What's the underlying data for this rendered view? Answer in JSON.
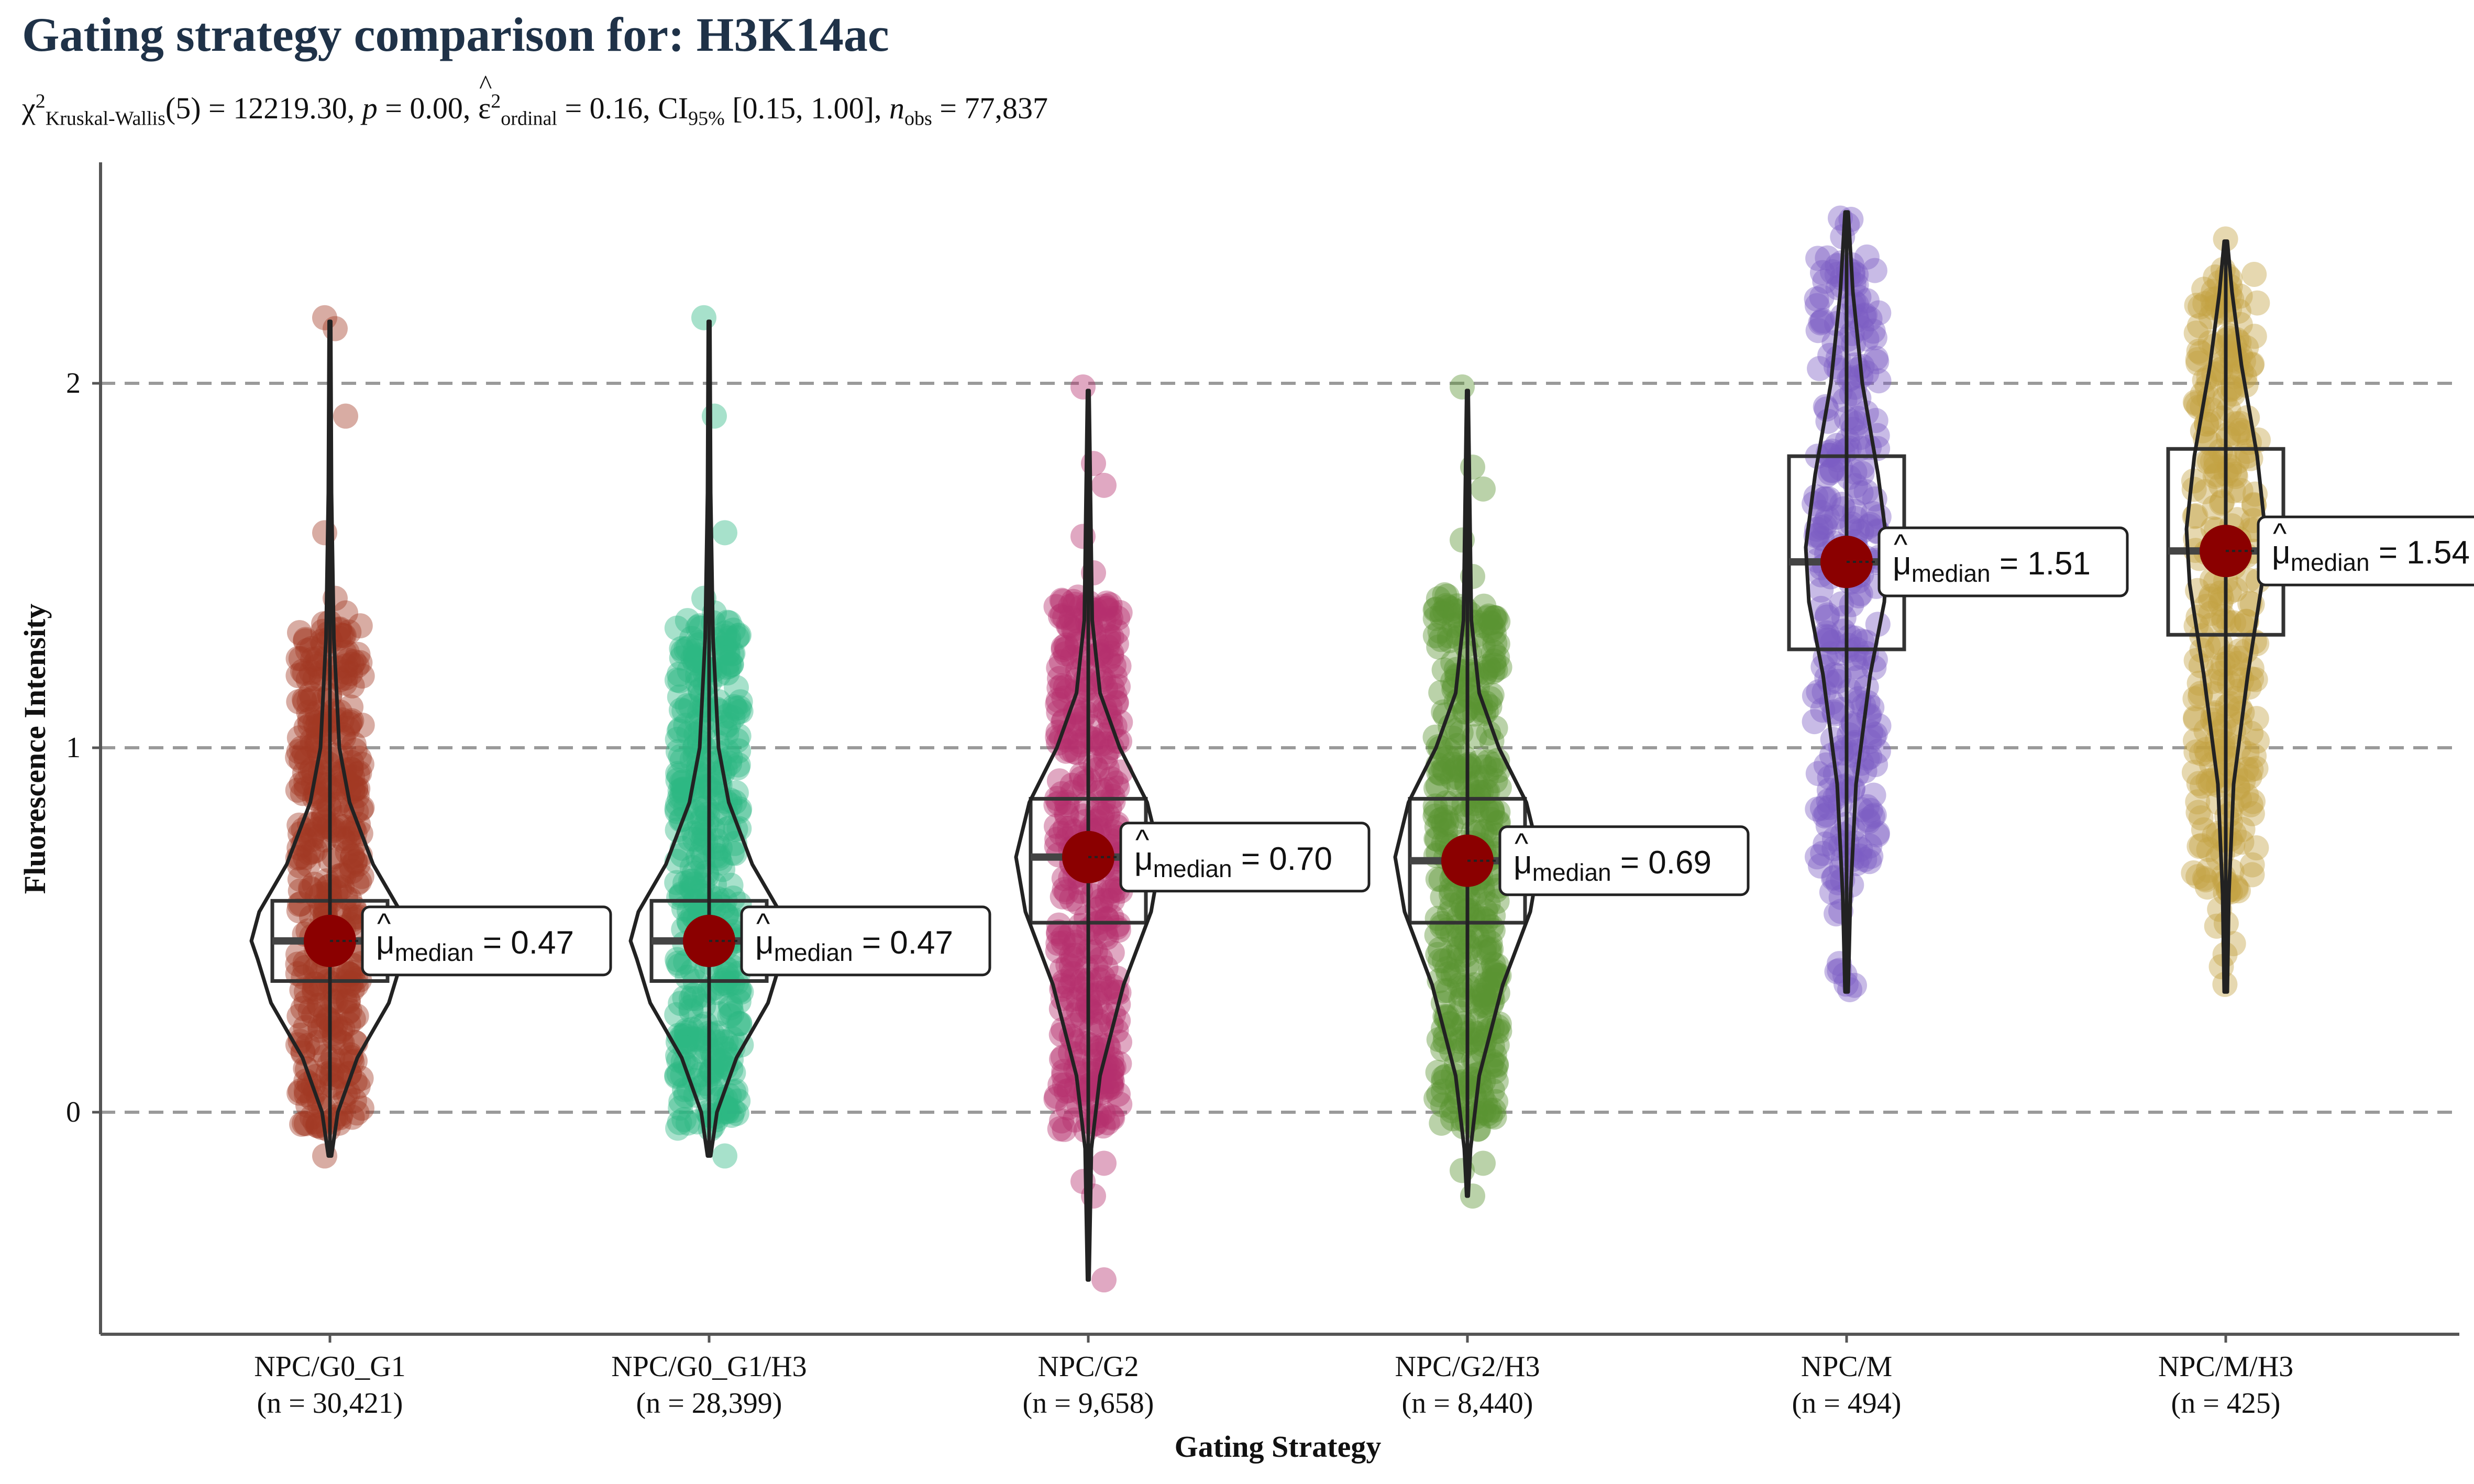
{
  "chart_data": {
    "type": "violin",
    "title": "Gating strategy comparison for: H3K14ac",
    "subtitle": {
      "chi_symbol": "χ",
      "chi_sup": "2",
      "chi_sub": "Kruskal-Wallis",
      "df_text": "(5) = 12219.30, ",
      "p_label": "p",
      "p_text": " = 0.00, ",
      "eps_symbol": "ε",
      "eps_sup": "2",
      "eps_sub": "ordinal",
      "eps_text": " = 0.16, CI",
      "ci_sub": "95%",
      "ci_text": " [0.15, 1.00], ",
      "n_label": "n",
      "n_sub": "obs",
      "n_text": " = 77,837"
    },
    "xlabel": "Gating Strategy",
    "ylabel": "Fluorescence Intensity",
    "ylim": [
      -0.6,
      2.6
    ],
    "yticks": [
      0,
      1,
      2
    ],
    "ytick_labels": [
      "0",
      "1",
      "2"
    ],
    "grid": "dashed horizontal at ticks",
    "median_label_prefix": "μ",
    "median_label_sub": "median",
    "groups": [
      {
        "name": "NPC/G0_G1",
        "n_label": "(n = 30,421)",
        "color": "#a23a24",
        "median": 0.47,
        "median_label": " = 0.47",
        "q1": 0.36,
        "q3": 0.58,
        "whisker_low": -0.12,
        "whisker_high": 2.17,
        "min": -0.13,
        "max": 2.18,
        "dense_range": [
          -0.05,
          1.35
        ],
        "outliers": [
          2.18,
          2.15,
          1.91,
          1.59,
          1.41,
          1.37,
          -0.12
        ],
        "density": [
          [
            -0.12,
            0.02
          ],
          [
            0.0,
            0.1
          ],
          [
            0.15,
            0.35
          ],
          [
            0.3,
            0.75
          ],
          [
            0.42,
            0.92
          ],
          [
            0.47,
            1.0
          ],
          [
            0.55,
            0.9
          ],
          [
            0.68,
            0.55
          ],
          [
            0.85,
            0.25
          ],
          [
            1.0,
            0.12
          ],
          [
            1.3,
            0.05
          ],
          [
            1.7,
            0.02
          ],
          [
            2.17,
            0.01
          ]
        ]
      },
      {
        "name": "NPC/G0_G1/H3",
        "n_label": "(n = 28,399)",
        "color": "#2db883",
        "median": 0.47,
        "median_label": " = 0.47",
        "q1": 0.36,
        "q3": 0.58,
        "whisker_low": -0.12,
        "whisker_high": 2.17,
        "min": -0.13,
        "max": 2.18,
        "dense_range": [
          -0.05,
          1.35
        ],
        "outliers": [
          2.18,
          1.91,
          1.59,
          1.41,
          1.37,
          -0.12
        ],
        "density": [
          [
            -0.12,
            0.02
          ],
          [
            0.0,
            0.1
          ],
          [
            0.15,
            0.35
          ],
          [
            0.3,
            0.75
          ],
          [
            0.42,
            0.92
          ],
          [
            0.47,
            1.0
          ],
          [
            0.55,
            0.9
          ],
          [
            0.68,
            0.55
          ],
          [
            0.85,
            0.25
          ],
          [
            1.0,
            0.12
          ],
          [
            1.3,
            0.05
          ],
          [
            1.7,
            0.02
          ],
          [
            2.17,
            0.01
          ]
        ]
      },
      {
        "name": "NPC/G2",
        "n_label": "(n = 9,658)",
        "color": "#b52f6e",
        "median": 0.7,
        "median_label": " = 0.70",
        "q1": 0.52,
        "q3": 0.86,
        "whisker_low": -0.46,
        "whisker_high": 1.98,
        "min": -0.46,
        "max": 1.99,
        "dense_range": [
          -0.05,
          1.42
        ],
        "outliers": [
          1.99,
          1.78,
          1.72,
          1.58,
          1.48,
          -0.14,
          -0.19,
          -0.23,
          -0.46
        ],
        "density": [
          [
            -0.46,
            0.01
          ],
          [
            -0.1,
            0.04
          ],
          [
            0.1,
            0.15
          ],
          [
            0.35,
            0.45
          ],
          [
            0.55,
            0.8
          ],
          [
            0.7,
            0.92
          ],
          [
            0.85,
            0.75
          ],
          [
            1.0,
            0.4
          ],
          [
            1.15,
            0.15
          ],
          [
            1.35,
            0.05
          ],
          [
            1.98,
            0.01
          ]
        ]
      },
      {
        "name": "NPC/G2/H3",
        "n_label": "(n = 8,440)",
        "color": "#5a9433",
        "median": 0.69,
        "median_label": " = 0.69",
        "q1": 0.52,
        "q3": 0.86,
        "whisker_low": -0.23,
        "whisker_high": 1.98,
        "min": -0.23,
        "max": 1.99,
        "dense_range": [
          -0.05,
          1.42
        ],
        "outliers": [
          1.99,
          1.77,
          1.71,
          1.57,
          1.47,
          -0.14,
          -0.16,
          -0.23
        ],
        "density": [
          [
            -0.23,
            0.01
          ],
          [
            -0.1,
            0.04
          ],
          [
            0.1,
            0.15
          ],
          [
            0.35,
            0.45
          ],
          [
            0.55,
            0.8
          ],
          [
            0.7,
            0.92
          ],
          [
            0.85,
            0.75
          ],
          [
            1.0,
            0.4
          ],
          [
            1.15,
            0.15
          ],
          [
            1.35,
            0.05
          ],
          [
            1.98,
            0.01
          ]
        ]
      },
      {
        "name": "NPC/M",
        "n_label": "(n = 494)",
        "color": "#7c5cc4",
        "median": 1.51,
        "median_label": " = 1.51",
        "q1": 1.27,
        "q3": 1.8,
        "whisker_low": 0.33,
        "whisker_high": 2.47,
        "min": 0.33,
        "max": 2.47,
        "dense_range": [
          0.6,
          2.35
        ],
        "outliers": [],
        "density": [
          [
            0.33,
            0.02
          ],
          [
            0.6,
            0.05
          ],
          [
            0.9,
            0.12
          ],
          [
            1.2,
            0.3
          ],
          [
            1.4,
            0.48
          ],
          [
            1.55,
            0.52
          ],
          [
            1.75,
            0.4
          ],
          [
            2.0,
            0.2
          ],
          [
            2.25,
            0.08
          ],
          [
            2.47,
            0.02
          ]
        ]
      },
      {
        "name": "NPC/M/H3",
        "n_label": "(n = 425)",
        "color": "#c4a243",
        "median": 1.54,
        "median_label": " = 1.54",
        "q1": 1.31,
        "q3": 1.82,
        "whisker_low": 0.33,
        "whisker_high": 2.39,
        "min": 0.33,
        "max": 2.4,
        "dense_range": [
          0.6,
          2.3
        ],
        "outliers": [],
        "density": [
          [
            0.33,
            0.02
          ],
          [
            0.6,
            0.04
          ],
          [
            0.9,
            0.1
          ],
          [
            1.2,
            0.28
          ],
          [
            1.45,
            0.46
          ],
          [
            1.6,
            0.5
          ],
          [
            1.8,
            0.4
          ],
          [
            2.05,
            0.2
          ],
          [
            2.25,
            0.08
          ],
          [
            2.39,
            0.02
          ]
        ]
      }
    ]
  }
}
